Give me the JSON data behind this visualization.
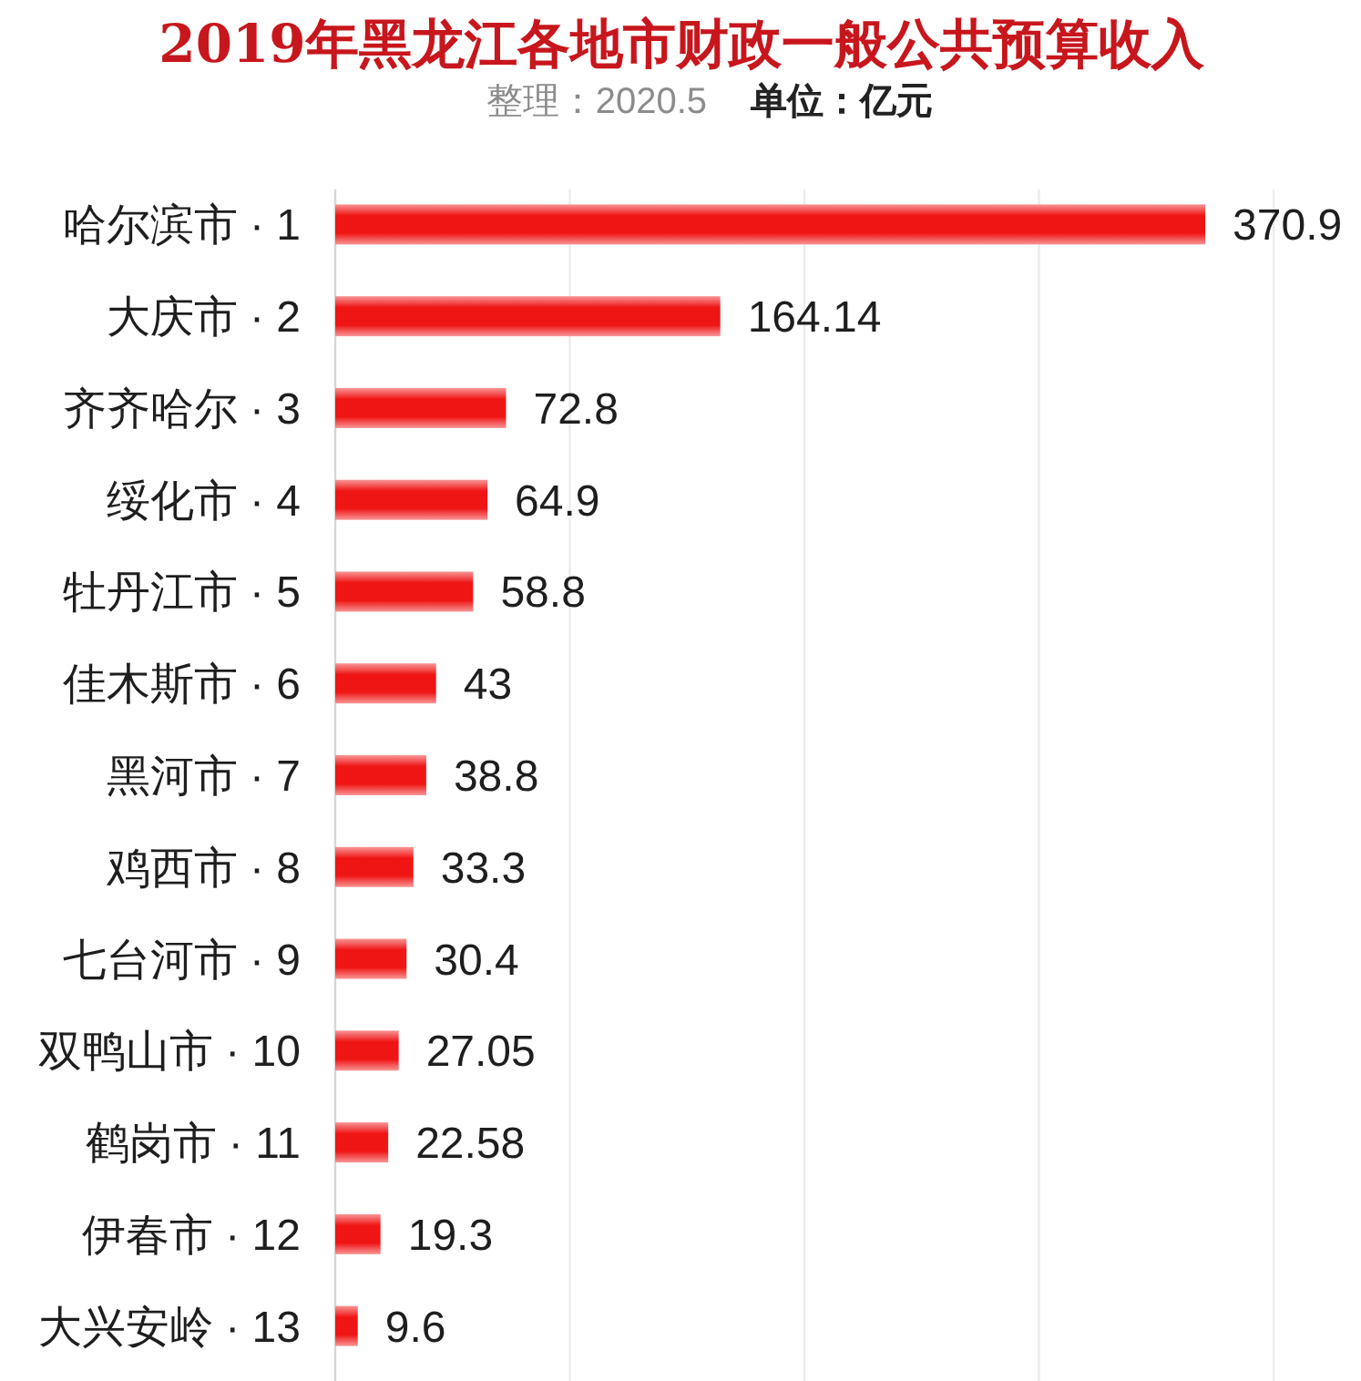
{
  "chart_data": {
    "type": "bar",
    "orientation": "horizontal",
    "title": "2019年黑龙江各地市财政一般公共预算收入",
    "subtitle": "整理：2020.5",
    "annotations": [
      "单位：亿元"
    ],
    "categories": [
      "哈尔滨市 · 1",
      "大庆市 · 2",
      "齐齐哈尔 · 3",
      "绥化市 · 4",
      "牡丹江市 · 5",
      "佳木斯市 · 6",
      "黑河市 · 7",
      "鸡西市 · 8",
      "七台河市 · 9",
      "双鸭山市 · 10",
      "鹤岗市 · 11",
      "伊春市 · 12",
      "大兴安岭 · 13"
    ],
    "values": [
      370.9,
      164.14,
      72.8,
      64.9,
      58.8,
      43,
      38.8,
      33.3,
      30.4,
      27.05,
      22.58,
      19.3,
      9.6
    ],
    "color": "#f01515",
    "xlim": [
      0,
      400
    ],
    "xticks": [
      {
        "value": 100,
        "label": null
      },
      {
        "value": 200,
        "label": null
      },
      {
        "value": 300,
        "label": null
      },
      {
        "value": 400,
        "label": null
      }
    ],
    "grid": "x",
    "tick_labels": "y",
    "data_labels": true
  }
}
